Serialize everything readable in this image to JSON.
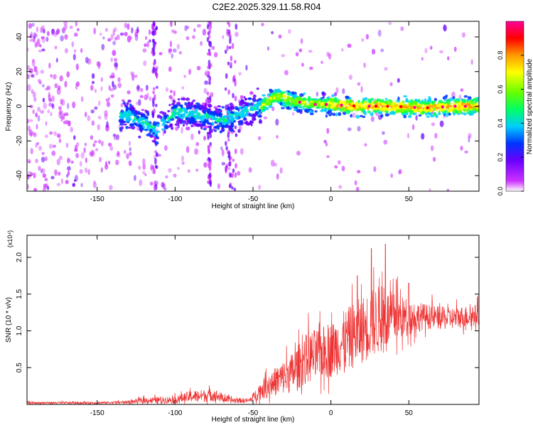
{
  "title": "C2E2.2025.329.11.58.R04",
  "chart_data": [
    {
      "type": "heatmap",
      "xlabel": "Height of straight line (km)",
      "ylabel": "Frequency (Hz)",
      "xlim": [
        -195,
        95
      ],
      "ylim": [
        -49,
        49
      ],
      "xticks": [
        -150,
        -100,
        -50,
        0,
        50
      ],
      "yticks": [
        -40,
        -20,
        0,
        20,
        40
      ],
      "colorbar": {
        "label": "Normalized spectral amplitude",
        "range": [
          0,
          1
        ],
        "ticks": [
          "0.0",
          "0.2",
          "0.4",
          "0.6",
          "0.8"
        ],
        "colors": [
          "#ffffff",
          "#cc33ff",
          "#6a00ff",
          "#0033ff",
          "#00ccff",
          "#00ff66",
          "#66ff00",
          "#ffff00",
          "#ff9900",
          "#ff0000",
          "#ff0099"
        ]
      },
      "features": {
        "ridge": [
          {
            "x": -130,
            "y": -5
          },
          {
            "x": -112,
            "y": -14
          },
          {
            "x": -100,
            "y": -3
          },
          {
            "x": -70,
            "y": -8
          },
          {
            "x": -60,
            "y": -5
          },
          {
            "x": -45,
            "y": 0
          },
          {
            "x": -35,
            "y": 6
          },
          {
            "x": -25,
            "y": 3
          },
          {
            "x": -10,
            "y": 1
          },
          {
            "x": 0,
            "y": 1
          },
          {
            "x": 20,
            "y": 0
          },
          {
            "x": 40,
            "y": 0
          },
          {
            "x": 60,
            "y": -1
          },
          {
            "x": 80,
            "y": 0
          },
          {
            "x": 93,
            "y": 0
          }
        ],
        "vertical_noise_bands": [
          {
            "x": -113,
            "width": 3
          },
          {
            "x": -78,
            "width": 2
          },
          {
            "x": -64,
            "width": 7
          }
        ]
      }
    },
    {
      "type": "line",
      "xlabel": "Height of straight line (km)",
      "ylabel": "SNR (10 * v/v)",
      "yscale_label": "(x10⁴)",
      "xlim": [
        -195,
        95
      ],
      "ylim": [
        0,
        2.3
      ],
      "xticks": [
        -150,
        -100,
        -50,
        0,
        50
      ],
      "yticks": [
        "0.5",
        "1.0",
        "1.5",
        "2.0"
      ],
      "series": [
        {
          "color": "#ee3333",
          "envelope": [
            {
              "x": -195,
              "base": 0.02,
              "spread": 0.03
            },
            {
              "x": -150,
              "base": 0.02,
              "spread": 0.03
            },
            {
              "x": -130,
              "base": 0.03,
              "spread": 0.04
            },
            {
              "x": -120,
              "base": 0.05,
              "spread": 0.08
            },
            {
              "x": -100,
              "base": 0.06,
              "spread": 0.1
            },
            {
              "x": -90,
              "base": 0.1,
              "spread": 0.16
            },
            {
              "x": -75,
              "base": 0.12,
              "spread": 0.18
            },
            {
              "x": -65,
              "base": 0.05,
              "spread": 0.08
            },
            {
              "x": -52,
              "base": 0.05,
              "spread": 0.06
            },
            {
              "x": -45,
              "base": 0.18,
              "spread": 0.25
            },
            {
              "x": -35,
              "base": 0.3,
              "spread": 0.4
            },
            {
              "x": -25,
              "base": 0.4,
              "spread": 0.55
            },
            {
              "x": -15,
              "base": 0.6,
              "spread": 0.7
            },
            {
              "x": 0,
              "base": 0.7,
              "spread": 0.75
            },
            {
              "x": 15,
              "base": 0.9,
              "spread": 0.9
            },
            {
              "x": 30,
              "base": 1.1,
              "spread": 0.95
            },
            {
              "x": 45,
              "base": 1.15,
              "spread": 0.6
            },
            {
              "x": 60,
              "base": 1.18,
              "spread": 0.35
            },
            {
              "x": 75,
              "base": 1.15,
              "spread": 0.3
            },
            {
              "x": 95,
              "base": 1.2,
              "spread": 0.3
            }
          ],
          "peaks": [
            {
              "x": 26,
              "y": 2.12
            },
            {
              "x": 35,
              "y": 2.18
            },
            {
              "x": 17,
              "y": 1.75
            },
            {
              "x": 42,
              "y": 1.7
            },
            {
              "x": 50,
              "y": 1.65
            }
          ]
        }
      ]
    }
  ]
}
